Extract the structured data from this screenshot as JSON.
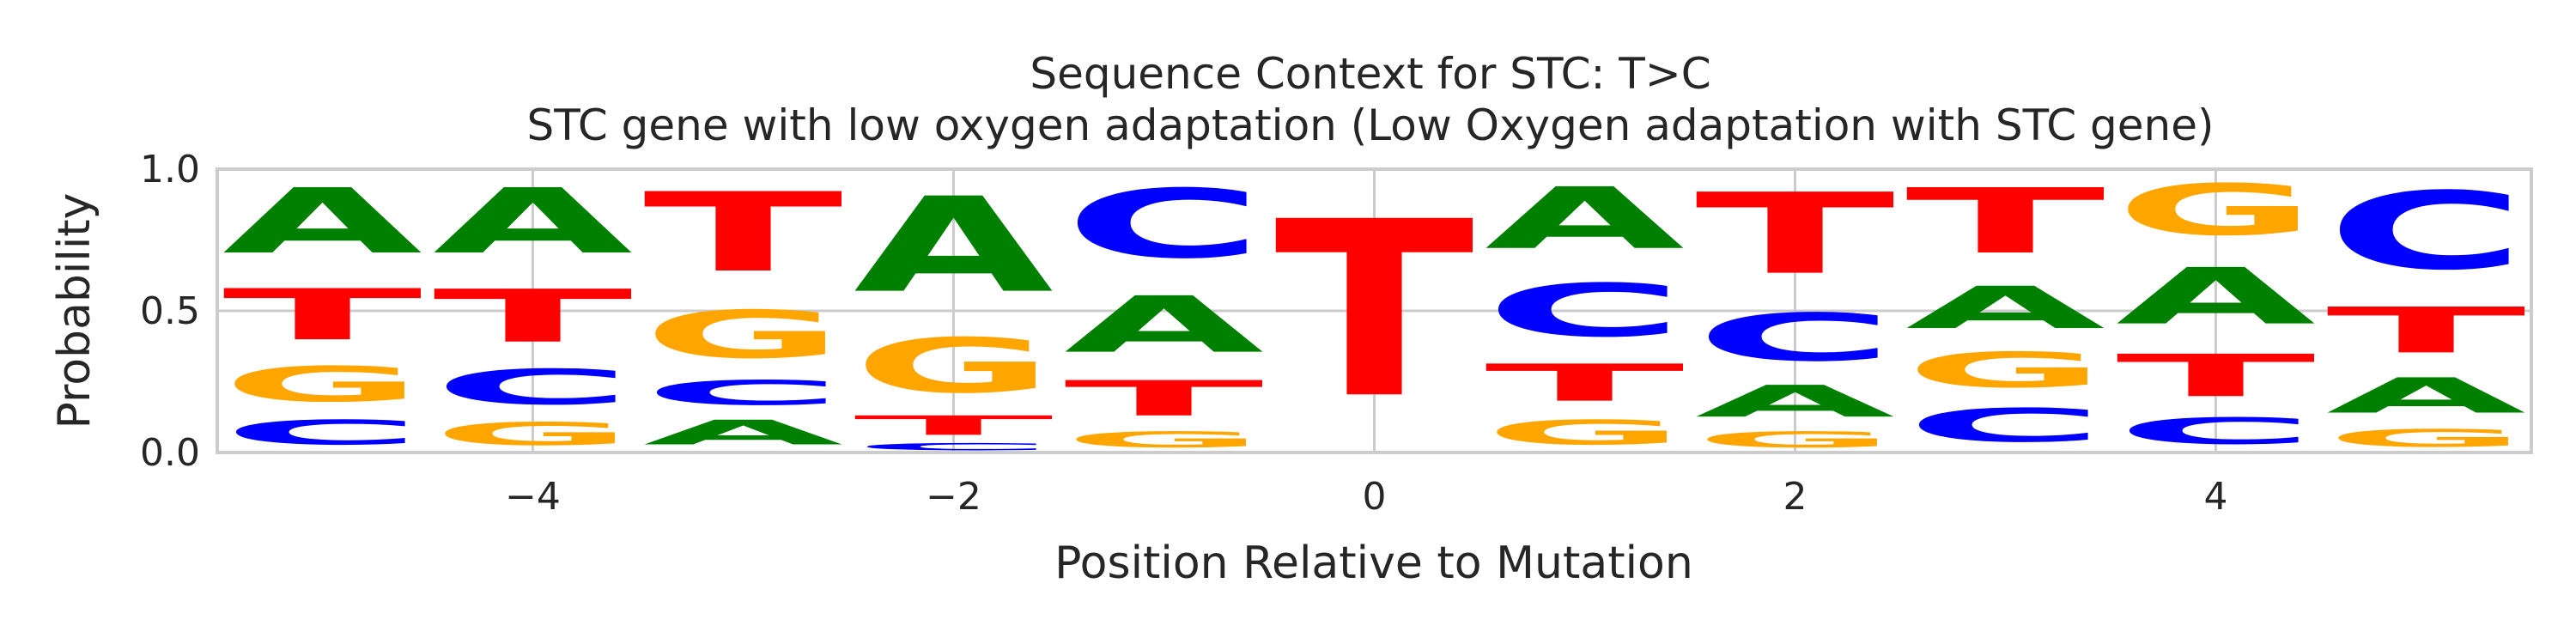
{
  "chart_data": {
    "type": "sequence-logo",
    "title": "Sequence Context for STC: T>C",
    "subtitle": "STC gene with low oxygen adaptation (Low Oxygen adaptation with STC gene)",
    "xlabel": "Position Relative to Mutation",
    "ylabel": "Probability",
    "xlim": [
      -5.5,
      5.5
    ],
    "ylim": [
      0,
      1
    ],
    "xticks": [
      -4,
      -2,
      0,
      2,
      4
    ],
    "xtick_labels": [
      "−4",
      "−2",
      "0",
      "2",
      "4"
    ],
    "yticks": [
      0,
      0.5,
      1
    ],
    "ytick_labels": [
      "0.0",
      "0.5",
      "1.0"
    ],
    "grid": true,
    "base_colors": {
      "A": "#008000",
      "C": "#0000ff",
      "G": "#ffa500",
      "T": "#ff0000"
    },
    "positions": [
      {
        "position": -5,
        "stack": [
          [
            "C",
            0.14
          ],
          [
            "G",
            0.2
          ],
          [
            "T",
            0.29
          ],
          [
            "A",
            0.37
          ]
        ]
      },
      {
        "position": -4,
        "stack": [
          [
            "G",
            0.13
          ],
          [
            "C",
            0.2
          ],
          [
            "T",
            0.3
          ],
          [
            "A",
            0.37
          ]
        ]
      },
      {
        "position": -3,
        "stack": [
          [
            "A",
            0.14
          ],
          [
            "C",
            0.14
          ],
          [
            "G",
            0.27
          ],
          [
            "T",
            0.45
          ]
        ]
      },
      {
        "position": -2,
        "stack": [
          [
            "C",
            0.04
          ],
          [
            "T",
            0.11
          ],
          [
            "G",
            0.31
          ],
          [
            "A",
            0.54
          ]
        ]
      },
      {
        "position": -1,
        "stack": [
          [
            "G",
            0.09
          ],
          [
            "T",
            0.2
          ],
          [
            "A",
            0.32
          ],
          [
            "C",
            0.39
          ]
        ]
      },
      {
        "position": 0,
        "stack": [
          [
            "T",
            1.0
          ]
        ]
      },
      {
        "position": 1,
        "stack": [
          [
            "G",
            0.14
          ],
          [
            "T",
            0.21
          ],
          [
            "C",
            0.3
          ],
          [
            "A",
            0.35
          ]
        ]
      },
      {
        "position": 2,
        "stack": [
          [
            "G",
            0.09
          ],
          [
            "A",
            0.18
          ],
          [
            "C",
            0.27
          ],
          [
            "T",
            0.46
          ]
        ]
      },
      {
        "position": 3,
        "stack": [
          [
            "C",
            0.19
          ],
          [
            "G",
            0.2
          ],
          [
            "A",
            0.24
          ],
          [
            "T",
            0.37
          ]
        ]
      },
      {
        "position": 4,
        "stack": [
          [
            "C",
            0.15
          ],
          [
            "T",
            0.24
          ],
          [
            "A",
            0.32
          ],
          [
            "G",
            0.29
          ]
        ]
      },
      {
        "position": 5,
        "stack": [
          [
            "G",
            0.1
          ],
          [
            "A",
            0.2
          ],
          [
            "T",
            0.26
          ],
          [
            "C",
            0.44
          ]
        ]
      }
    ]
  }
}
